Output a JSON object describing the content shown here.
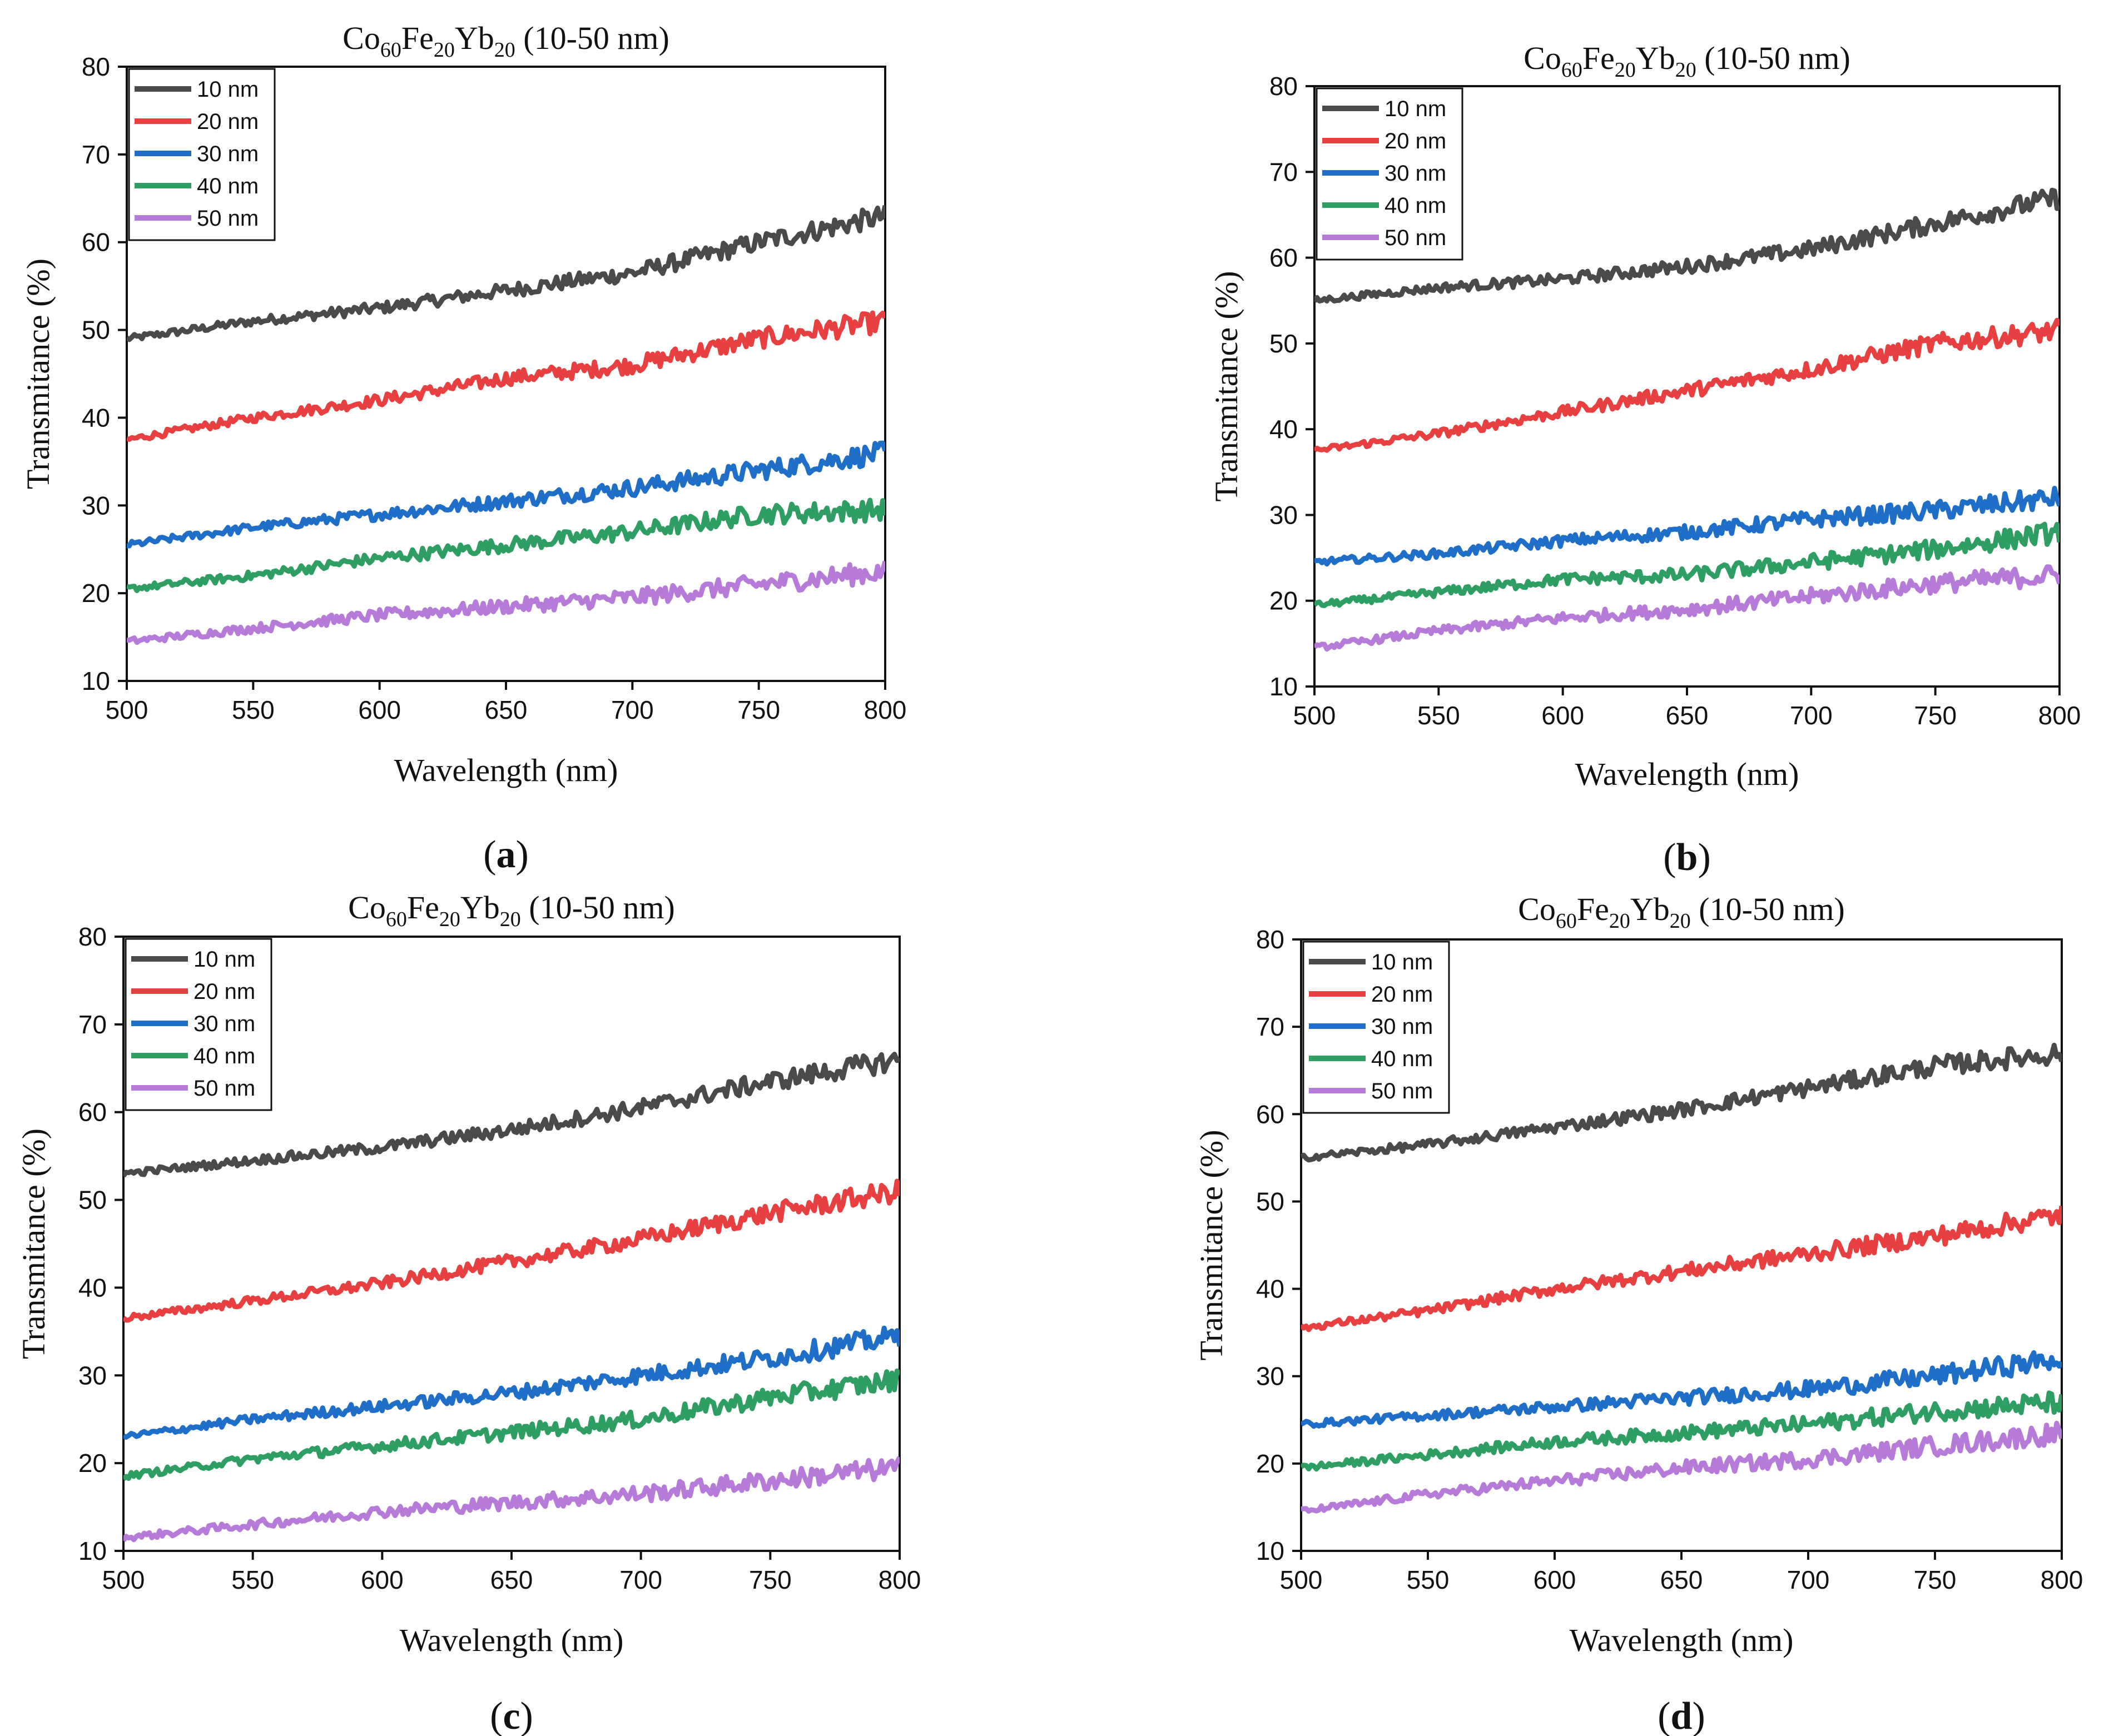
{
  "chart_data": [
    {
      "type": "line",
      "panel_label": "a",
      "title": {
        "base1": "Co",
        "sub1": "60",
        "base2": "Fe",
        "sub2": "20",
        "base3": "Yb",
        "sub3": "20",
        "suffix": " (10-50 nm)"
      },
      "xlabel": "Wavelength (nm)",
      "ylabel": "Transmitance (%)",
      "xlim": [
        500,
        800
      ],
      "ylim": [
        10,
        80
      ],
      "xticks": [
        500,
        550,
        600,
        650,
        700,
        750,
        800
      ],
      "yticks": [
        10,
        20,
        30,
        40,
        50,
        60,
        70,
        80
      ],
      "legend_position": "top-left",
      "series": [
        {
          "name": "10 nm",
          "color": "#4a4a4a",
          "x": [
            500,
            550,
            600,
            650,
            700,
            750,
            800
          ],
          "values": [
            49,
            51,
            52.5,
            54.5,
            56.5,
            60,
            63
          ]
        },
        {
          "name": "20 nm",
          "color": "#e84040",
          "x": [
            500,
            550,
            600,
            650,
            700,
            750,
            800
          ],
          "values": [
            37.5,
            40,
            42,
            44.5,
            46,
            49,
            51
          ]
        },
        {
          "name": "30 nm",
          "color": "#1f6fc9",
          "x": [
            500,
            550,
            600,
            650,
            700,
            750,
            800
          ],
          "values": [
            25.5,
            27.5,
            29,
            30.5,
            32,
            34,
            36
          ]
        },
        {
          "name": "40 nm",
          "color": "#2e9e62",
          "x": [
            500,
            550,
            600,
            650,
            700,
            750,
            800
          ],
          "values": [
            20.5,
            22,
            24,
            25.5,
            27,
            29,
            29.5
          ]
        },
        {
          "name": "50 nm",
          "color": "#b67bd9",
          "x": [
            500,
            550,
            600,
            650,
            700,
            750,
            800
          ],
          "values": [
            14.5,
            16,
            17.5,
            18.5,
            19.5,
            21,
            22.5
          ]
        }
      ]
    },
    {
      "type": "line",
      "panel_label": "b",
      "title": {
        "base1": "Co",
        "sub1": "60",
        "base2": "Fe",
        "sub2": "20",
        "base3": "Yb",
        "sub3": "20",
        "suffix": " (10-50 nm)"
      },
      "xlabel": "Wavelength (nm)",
      "ylabel": "Transmitance (%)",
      "xlim": [
        500,
        800
      ],
      "ylim": [
        10,
        80
      ],
      "xticks": [
        500,
        550,
        600,
        650,
        700,
        750,
        800
      ],
      "yticks": [
        10,
        20,
        30,
        40,
        50,
        60,
        70,
        80
      ],
      "legend_position": "top-left",
      "series": [
        {
          "name": "10 nm",
          "color": "#4a4a4a",
          "x": [
            500,
            550,
            600,
            650,
            700,
            750,
            800
          ],
          "values": [
            55,
            56.5,
            57.5,
            59,
            61,
            64,
            67
          ]
        },
        {
          "name": "20 nm",
          "color": "#e84040",
          "x": [
            500,
            550,
            600,
            650,
            700,
            750,
            800
          ],
          "values": [
            37.5,
            39.5,
            42,
            44.5,
            47,
            50,
            51.5
          ]
        },
        {
          "name": "30 nm",
          "color": "#1f6fc9",
          "x": [
            500,
            550,
            600,
            650,
            700,
            750,
            800
          ],
          "values": [
            24.5,
            25.5,
            27,
            28,
            29.5,
            30.5,
            32
          ]
        },
        {
          "name": "40 nm",
          "color": "#2e9e62",
          "x": [
            500,
            550,
            600,
            650,
            700,
            750,
            800
          ],
          "values": [
            19.5,
            21,
            22.5,
            23,
            24.5,
            26,
            28
          ]
        },
        {
          "name": "50 nm",
          "color": "#b67bd9",
          "x": [
            500,
            550,
            600,
            650,
            700,
            750,
            800
          ],
          "values": [
            14.5,
            16.5,
            18,
            19,
            20.5,
            22,
            23
          ]
        }
      ]
    },
    {
      "type": "line",
      "panel_label": "c",
      "title": {
        "base1": "Co",
        "sub1": "60",
        "base2": "Fe",
        "sub2": "20",
        "base3": "Yb",
        "sub3": "20",
        "suffix": " (10-50 nm)"
      },
      "xlabel": "Wavelength (nm)",
      "ylabel": "Transmitance (%)",
      "xlim": [
        500,
        800
      ],
      "ylim": [
        10,
        80
      ],
      "xticks": [
        500,
        550,
        600,
        650,
        700,
        750,
        800
      ],
      "yticks": [
        10,
        20,
        30,
        40,
        50,
        60,
        70,
        80
      ],
      "legend_position": "top-left",
      "series": [
        {
          "name": "10 nm",
          "color": "#4a4a4a",
          "x": [
            500,
            550,
            600,
            650,
            700,
            750,
            800
          ],
          "values": [
            53,
            54.5,
            56,
            58,
            60.5,
            63.5,
            66
          ]
        },
        {
          "name": "20 nm",
          "color": "#e84040",
          "x": [
            500,
            550,
            600,
            650,
            700,
            750,
            800
          ],
          "values": [
            36.5,
            38.5,
            40.5,
            43,
            45.5,
            48.5,
            51
          ]
        },
        {
          "name": "30 nm",
          "color": "#1f6fc9",
          "x": [
            500,
            550,
            600,
            650,
            700,
            750,
            800
          ],
          "values": [
            23,
            25,
            26.5,
            28,
            30,
            32,
            34.5
          ]
        },
        {
          "name": "40 nm",
          "color": "#2e9e62",
          "x": [
            500,
            550,
            600,
            650,
            700,
            750,
            800
          ],
          "values": [
            18.5,
            20.5,
            22,
            23.5,
            25,
            27.5,
            29.5
          ]
        },
        {
          "name": "50 nm",
          "color": "#b67bd9",
          "x": [
            500,
            550,
            600,
            650,
            700,
            750,
            800
          ],
          "values": [
            11.5,
            13,
            14.5,
            15.5,
            16.5,
            18,
            19.5
          ]
        }
      ]
    },
    {
      "type": "line",
      "panel_label": "d",
      "title": {
        "base1": "Co",
        "sub1": "60",
        "base2": "Fe",
        "sub2": "20",
        "base3": "Yb",
        "sub3": "20",
        "suffix": " (10-50 nm)"
      },
      "xlabel": "Wavelength (nm)",
      "ylabel": "Transmitance (%)",
      "xlim": [
        500,
        800
      ],
      "ylim": [
        10,
        80
      ],
      "xticks": [
        500,
        550,
        600,
        650,
        700,
        750,
        800
      ],
      "yticks": [
        10,
        20,
        30,
        40,
        50,
        60,
        70,
        80
      ],
      "legend_position": "top-left",
      "series": [
        {
          "name": "10 nm",
          "color": "#4a4a4a",
          "x": [
            500,
            550,
            600,
            650,
            700,
            750,
            800
          ],
          "values": [
            55,
            56.5,
            58.5,
            60.5,
            63,
            65.5,
            67
          ]
        },
        {
          "name": "20 nm",
          "color": "#e84040",
          "x": [
            500,
            550,
            600,
            650,
            700,
            750,
            800
          ],
          "values": [
            35.5,
            37.5,
            40,
            42,
            44,
            46,
            48.5
          ]
        },
        {
          "name": "30 nm",
          "color": "#1f6fc9",
          "x": [
            500,
            550,
            600,
            650,
            700,
            750,
            800
          ],
          "values": [
            24.5,
            25.5,
            26.5,
            27.5,
            28.5,
            30,
            32
          ]
        },
        {
          "name": "40 nm",
          "color": "#2e9e62",
          "x": [
            500,
            550,
            600,
            650,
            700,
            750,
            800
          ],
          "values": [
            19.5,
            21,
            22.5,
            23.5,
            24.5,
            26,
            27
          ]
        },
        {
          "name": "50 nm",
          "color": "#b67bd9",
          "x": [
            500,
            550,
            600,
            650,
            700,
            750,
            800
          ],
          "values": [
            14.5,
            16.5,
            18,
            19.5,
            20.5,
            22,
            23.5
          ]
        }
      ]
    }
  ]
}
